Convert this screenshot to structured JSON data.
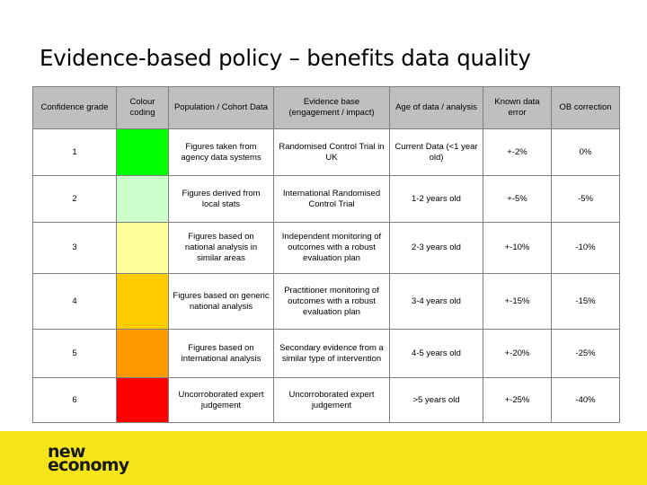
{
  "slide": {
    "title": "Evidence-based policy – benefits data quality"
  },
  "table": {
    "headers": [
      "Confidence grade",
      "Colour coding",
      "Population / Cohort Data",
      "Evidence base (engagement / impact)",
      "Age of data / analysis",
      "Known data error",
      "OB correction"
    ],
    "rows": [
      {
        "grade": "1",
        "colour": "#00ff00",
        "population": "Figures taken from agency data systems",
        "evidence": "Randomised Control Trial in UK",
        "age": "Current Data (<1 year old)",
        "error": "+-2%",
        "ob": "0%"
      },
      {
        "grade": "2",
        "colour": "#ccffcc",
        "population": "Figures derived from local stats",
        "evidence": "International Randomised Control Trial",
        "age": "1-2  years old",
        "error": "+-5%",
        "ob": "-5%"
      },
      {
        "grade": "3",
        "colour": "#ffff99",
        "population": "Figures based on national analysis in similar areas",
        "evidence": "Independent monitoring of outcomes with a robust evaluation plan",
        "age": "2-3 years old",
        "error": "+-10%",
        "ob": "-10%"
      },
      {
        "grade": "4",
        "colour": "#ffcc00",
        "population": "Figures based on generic national analysis",
        "evidence": "Practitioner monitoring of outcomes with a robust evaluation plan",
        "age": "3-4 years old",
        "error": "+-15%",
        "ob": "-15%"
      },
      {
        "grade": "5",
        "colour": "#ff9900",
        "population": "Figures based on international analysis",
        "evidence": "Secondary evidence from a similar type of intervention",
        "age": "4-5 years old",
        "error": "+-20%",
        "ob": "-25%"
      },
      {
        "grade": "6",
        "colour": "#ff0000",
        "population": "Uncorroborated expert judgement",
        "evidence": "Uncorroborated expert judgement",
        "age": ">5 years old",
        "error": "+-25%",
        "ob": "-40%"
      }
    ]
  },
  "footer": {
    "band_color": "#f5e51a",
    "logo_line1": "new",
    "logo_line2": "economy"
  }
}
